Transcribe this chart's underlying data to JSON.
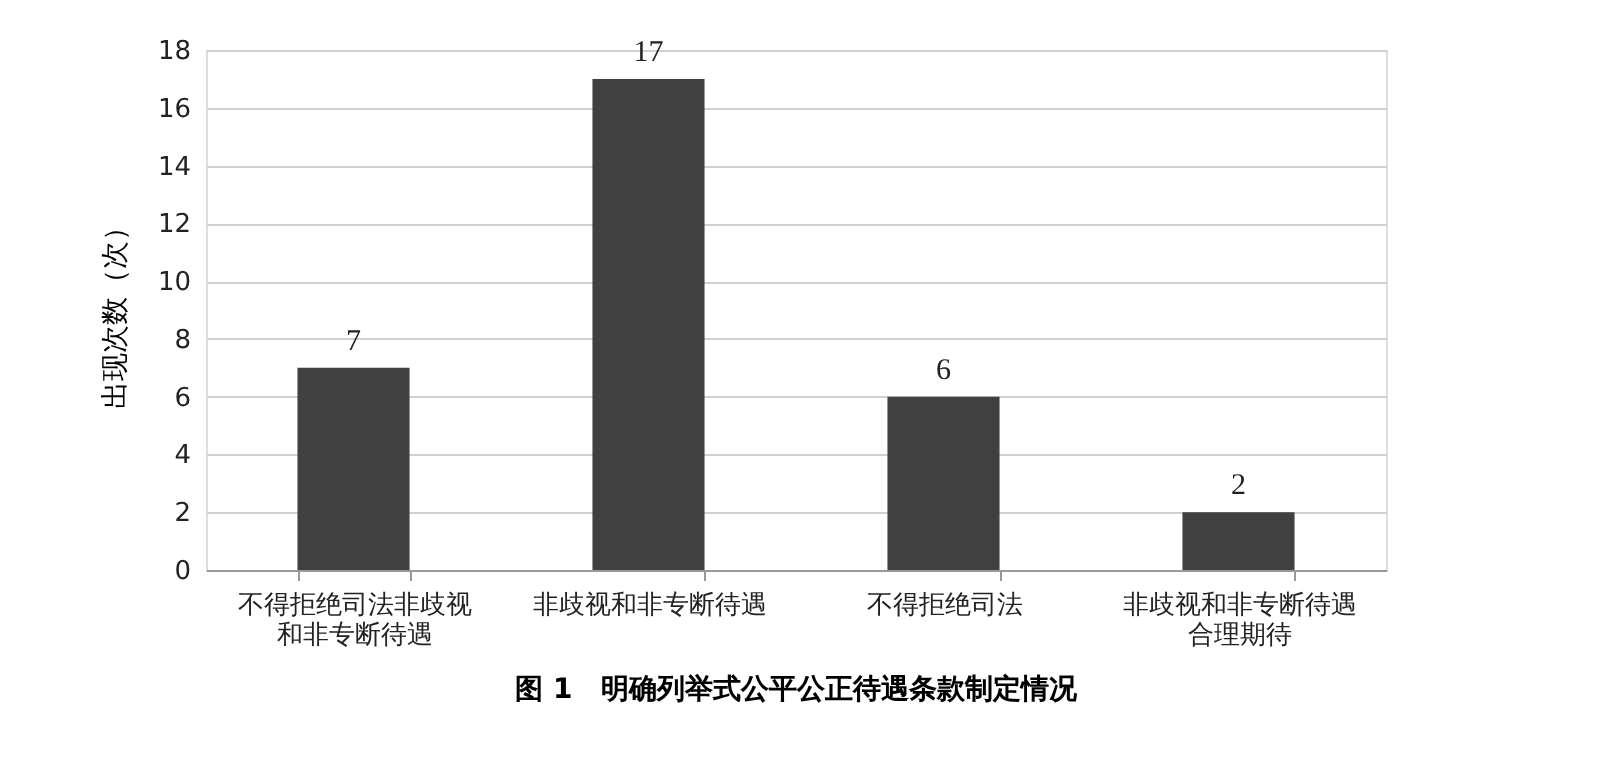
{
  "chart_data": {
    "type": "bar",
    "title": "图 1　明确列举式公平公正待遇条款制定情况",
    "ylabel": "出现次数（次）",
    "categories": [
      "不得拒绝司法非歧视和非专断待遇",
      "非歧视和非专断待遇",
      "不得拒绝司法",
      "非歧视和非专断待遇合理期待"
    ],
    "values": [
      7,
      17,
      6,
      2
    ],
    "color": "#404040",
    "ylim": [
      0,
      18
    ],
    "yticks": [
      0,
      2,
      4,
      6,
      8,
      10,
      12,
      14,
      16,
      18
    ],
    "grid": "y",
    "data_labels": true
  }
}
